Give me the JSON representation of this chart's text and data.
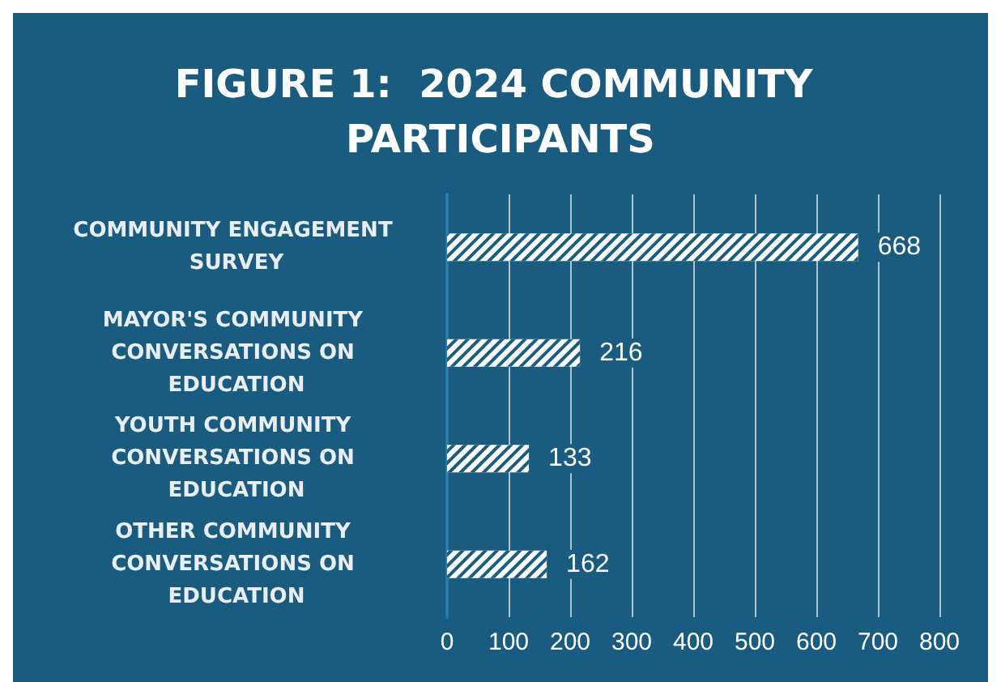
{
  "chart_data": {
    "type": "bar",
    "orientation": "horizontal",
    "title": "FIGURE 1:  2024 COMMUNITY PARTICIPANTS",
    "categories": [
      "COMMUNITY ENGAGEMENT SURVEY",
      "MAYOR'S COMMUNITY CONVERSATIONS ON EDUCATION",
      "YOUTH COMMUNITY CONVERSATIONS ON EDUCATION",
      "OTHER COMMUNITY CONVERSATIONS ON EDUCATION"
    ],
    "values": [
      668,
      216,
      133,
      162
    ],
    "color": "#ffffff",
    "xlim": [
      0,
      800
    ],
    "xticks": [
      0,
      100,
      200,
      300,
      400,
      500,
      600,
      700,
      800
    ],
    "grid": "x",
    "data_labels": true
  }
}
